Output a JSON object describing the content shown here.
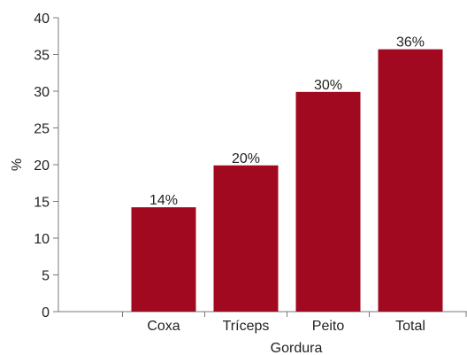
{
  "chart_data": {
    "type": "bar",
    "categories": [
      "Coxa",
      "Tríceps",
      "Peito",
      "Total"
    ],
    "values": [
      14.2,
      19.9,
      29.9,
      35.7
    ],
    "data_labels": [
      "14%",
      "20%",
      "30%",
      "36%"
    ],
    "title": "",
    "xlabel": "Gordura",
    "ylabel": "%",
    "ylim": [
      0,
      40
    ],
    "yticks": [
      0,
      5,
      10,
      15,
      20,
      25,
      30,
      35,
      40
    ],
    "grid": false,
    "legend": "none",
    "bar_color": "#a0091f"
  }
}
